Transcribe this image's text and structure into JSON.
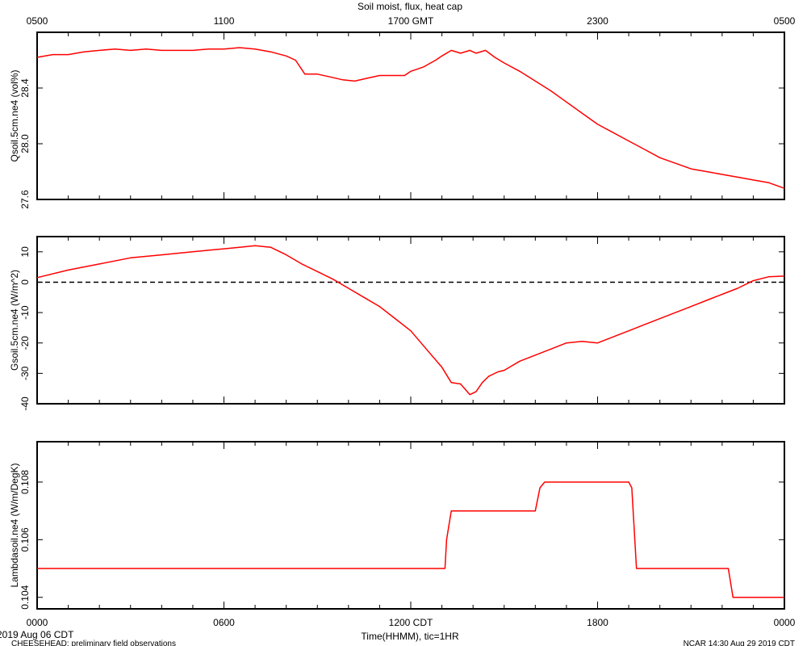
{
  "chart_data": {
    "title": "Soil moist, flux, heat cap",
    "top_axis_ticks": [
      "0500",
      "1100",
      "1700 GMT",
      "2300",
      "0500"
    ],
    "bottom_axis_ticks": [
      "0000",
      "0600",
      "1200 CDT",
      "1800",
      "0000"
    ],
    "xlabel": "Time(HHMM), tic=1HR",
    "date_label": "2019 Aug 06 CDT",
    "footer_left": "CHEESEHEAD: preliminary field observations",
    "footer_right": "NCAR 14:30 Aug 29 2019 CDT",
    "x_unit": "hours since 0000 CDT",
    "xlim": [
      0,
      24
    ],
    "line_color": "#ff0000",
    "panels": [
      {
        "type": "line",
        "ylabel": "Qsoil.5cm.ne4 (vol%)",
        "ylim": [
          27.6,
          28.8
        ],
        "yticks": [
          27.6,
          28.0,
          28.4
        ],
        "ytick_labels": [
          "27.6",
          "28.0",
          "28.4"
        ],
        "zero_line": false,
        "series": [
          {
            "x": [
              0,
              0.5,
              1,
              1.5,
              2,
              2.5,
              3,
              3.5,
              4,
              4.5,
              5,
              5.5,
              6,
              6.5,
              7,
              7.5,
              8,
              8.3,
              8.6,
              9,
              9.4,
              9.8,
              10.2,
              10.6,
              11,
              11.4,
              11.8,
              12,
              12.4,
              12.8,
              13,
              13.3,
              13.6,
              13.9,
              14.1,
              14.4,
              14.7,
              15,
              15.5,
              16,
              16.5,
              17,
              17.5,
              18,
              18.5,
              19,
              19.5,
              20,
              20.5,
              21,
              21.5,
              22,
              22.5,
              23,
              23.5,
              24
            ],
            "y": [
              28.62,
              28.64,
              28.64,
              28.66,
              28.67,
              28.68,
              28.67,
              28.68,
              28.67,
              28.67,
              28.67,
              28.68,
              28.68,
              28.69,
              28.68,
              28.66,
              28.63,
              28.6,
              28.5,
              28.5,
              28.48,
              28.46,
              28.45,
              28.47,
              28.49,
              28.49,
              28.49,
              28.52,
              28.55,
              28.6,
              28.63,
              28.67,
              28.65,
              28.67,
              28.65,
              28.67,
              28.62,
              28.58,
              28.52,
              28.45,
              28.38,
              28.3,
              28.22,
              28.14,
              28.08,
              28.02,
              27.96,
              27.9,
              27.86,
              27.82,
              27.8,
              27.78,
              27.76,
              27.74,
              27.72,
              27.68
            ]
          }
        ]
      },
      {
        "type": "line",
        "ylabel": "Gsoil.5cm.ne4 (W/m^2)",
        "ylim": [
          -40,
          15
        ],
        "yticks": [
          -40,
          -30,
          -20,
          -10,
          0,
          10
        ],
        "ytick_labels": [
          "-40",
          "-30",
          "-20",
          "-10",
          "0",
          "10"
        ],
        "zero_line": true,
        "series": [
          {
            "x": [
              0,
              1,
              2,
              3,
              4,
              5,
              5.5,
              6,
              6.5,
              7,
              7.5,
              8,
              8.5,
              9,
              9.5,
              10,
              10.5,
              11,
              11.5,
              12,
              12.5,
              13,
              13.3,
              13.6,
              13.9,
              14.1,
              14.3,
              14.5,
              14.8,
              15,
              15.5,
              16,
              16.5,
              17,
              17.5,
              18,
              18.5,
              19,
              19.5,
              20,
              20.5,
              21,
              21.5,
              22,
              22.5,
              23,
              23.5,
              24
            ],
            "y": [
              1.5,
              4,
              6,
              8,
              9,
              10,
              10.5,
              11,
              11.5,
              12,
              11.5,
              9,
              6,
              3.5,
              1,
              -2,
              -5,
              -8,
              -12,
              -16,
              -22,
              -28,
              -33,
              -33.5,
              -37,
              -36,
              -33,
              -31,
              -29.5,
              -29,
              -26,
              -24,
              -22,
              -20,
              -19.5,
              -20,
              -18,
              -16,
              -14,
              -12,
              -10,
              -8,
              -6,
              -4,
              -2,
              0.5,
              1.8,
              2
            ]
          }
        ]
      },
      {
        "type": "line",
        "ylabel": "Lambdasoil.ne4 (W/m/DegK)",
        "ylim": [
          0.1036,
          0.1094
        ],
        "yticks": [
          0.104,
          0.106,
          0.108
        ],
        "ytick_labels": [
          "0.104",
          "0.106",
          "0.108"
        ],
        "zero_line": false,
        "series": [
          {
            "x": [
              0,
              13.1,
              13.15,
              13.3,
              16.0,
              16.15,
              16.3,
              19.0,
              19.1,
              19.25,
              22.2,
              22.35,
              24
            ],
            "y": [
              0.105,
              0.105,
              0.106,
              0.107,
              0.107,
              0.1078,
              0.108,
              0.108,
              0.1078,
              0.105,
              0.105,
              0.104,
              0.104
            ]
          }
        ]
      }
    ]
  }
}
